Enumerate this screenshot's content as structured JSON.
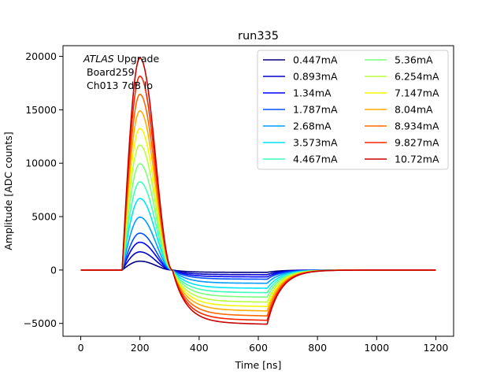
{
  "chart_data": {
    "type": "line",
    "title": "run335",
    "xlabel": "Time [ns]",
    "ylabel": "Amplitude [ADC counts]",
    "xlim": [
      -60,
      1260
    ],
    "ylim": [
      -6200,
      21000
    ],
    "xticks": [
      0,
      200,
      400,
      600,
      800,
      1000,
      1200
    ],
    "yticks": [
      -5000,
      0,
      5000,
      10000,
      15000,
      20000
    ],
    "grid": false,
    "legend_position": "top-right",
    "legend_columns": 2,
    "annotation": {
      "line1_italic": "ATLAS",
      "line1_rest": " Upgrade",
      "line2": "Board259",
      "line3": "Ch013 7dB lo"
    },
    "pulse_shape": {
      "baseline_until_ns": 140,
      "peak_time_ns": 200,
      "zero_cross_ns": 310,
      "undershoot_plateau_end_ns": 630,
      "recovered_by_ns": 900,
      "end_ns": 1200
    },
    "series": [
      {
        "name": "0.447mA",
        "color": "#00007f",
        "peak": 830,
        "undershoot": -210
      },
      {
        "name": "0.893mA",
        "color": "#0000c8",
        "peak": 1700,
        "undershoot": -420
      },
      {
        "name": "1.34mA",
        "color": "#0000ff",
        "peak": 2600,
        "undershoot": -620
      },
      {
        "name": "1.787mA",
        "color": "#0050ff",
        "peak": 3450,
        "undershoot": -830
      },
      {
        "name": "2.68mA",
        "color": "#009cff",
        "peak": 4950,
        "undershoot": -1200
      },
      {
        "name": "3.573mA",
        "color": "#00e4f8",
        "peak": 6700,
        "undershoot": -1650
      },
      {
        "name": "4.467mA",
        "color": "#3dffb9",
        "peak": 8250,
        "undershoot": -2050
      },
      {
        "name": "5.36mA",
        "color": "#7dff7a",
        "peak": 9950,
        "undershoot": -2450
      },
      {
        "name": "6.254mA",
        "color": "#b9ff3d",
        "peak": 11700,
        "undershoot": -2900
      },
      {
        "name": "7.147mA",
        "color": "#f4f802",
        "peak": 13250,
        "undershoot": -3300
      },
      {
        "name": "8.04mA",
        "color": "#ffae00",
        "peak": 14900,
        "undershoot": -3700
      },
      {
        "name": "8.934mA",
        "color": "#ff6800",
        "peak": 16450,
        "undershoot": -4150
      },
      {
        "name": "9.827mA",
        "color": "#ff2300",
        "peak": 18150,
        "undershoot": -4550
      },
      {
        "name": "10.72mA",
        "color": "#c80000",
        "peak": 19850,
        "undershoot": -4900
      }
    ]
  }
}
